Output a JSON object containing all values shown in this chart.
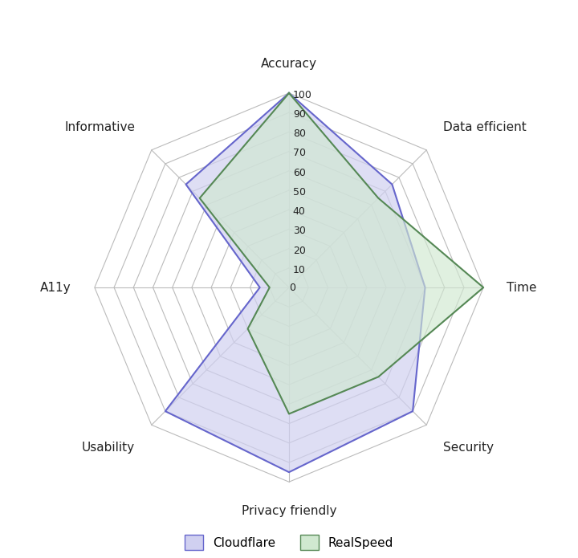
{
  "categories": [
    "Accuracy",
    "Data efficient",
    "Time",
    "Security",
    "Privacy friendly",
    "Usability",
    "A11y",
    "Informative"
  ],
  "cloudflare": [
    100,
    75,
    70,
    90,
    95,
    90,
    15,
    75
  ],
  "realspeed": [
    100,
    65,
    100,
    65,
    65,
    30,
    10,
    65
  ],
  "cloudflare_line_color": "#6666cc",
  "cloudflare_fill_color": "#d0d0f0",
  "realspeed_line_color": "#558855",
  "realspeed_fill_color": "#d0e8d0",
  "grid_color": "#bbbbbb",
  "spoke_color": "#bbbbbb",
  "r_max": 100,
  "r_ticks": [
    0,
    10,
    20,
    30,
    40,
    50,
    60,
    70,
    80,
    90,
    100
  ],
  "legend_cloudflare": "Cloudflare",
  "legend_realspeed": "RealSpeed",
  "bg_color": "#ffffff",
  "label_fontsize": 11,
  "tick_fontsize": 9,
  "figsize": [
    7.2,
    6.95
  ],
  "dpi": 100
}
